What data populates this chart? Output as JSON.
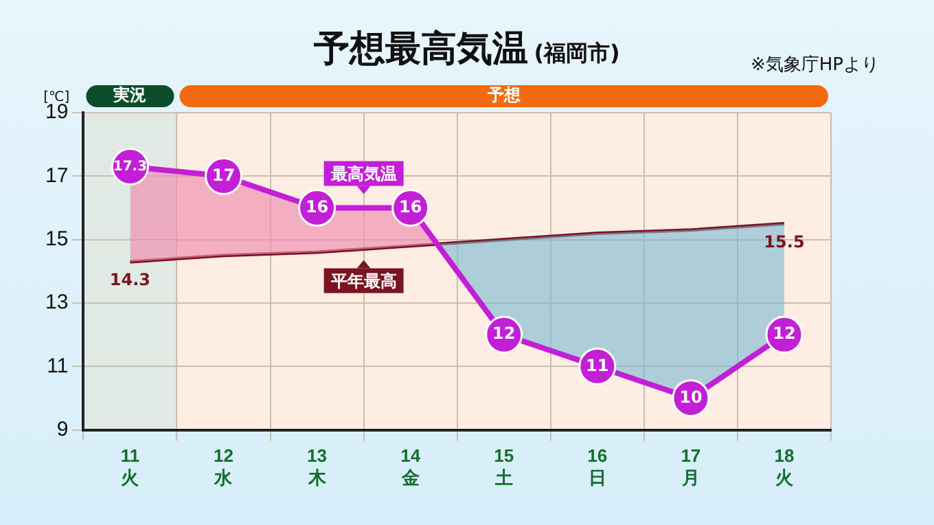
{
  "chart_data": {
    "type": "line",
    "title": "予想最高気温",
    "subtitle": "(福岡市)",
    "ylabel": "[℃]",
    "categories": [
      "11\n火",
      "12\n水",
      "13\n木",
      "14\n金",
      "15\n土",
      "16\n日",
      "17\n月",
      "18\n火"
    ],
    "series": [
      {
        "name": "最高気温",
        "color": "#c21fd6",
        "values": [
          17.3,
          17,
          16,
          16,
          12,
          11,
          10,
          12
        ],
        "value_labels": [
          "17.3",
          "17",
          "16",
          "16",
          "12",
          "11",
          "10",
          "12"
        ]
      },
      {
        "name": "平年最高",
        "color": "#7a1420",
        "values": [
          14.3,
          14.5,
          14.6,
          14.8,
          15.0,
          15.2,
          15.3,
          15.5
        ],
        "value_labels": [
          "14.3",
          null,
          null,
          null,
          null,
          null,
          null,
          "15.5"
        ],
        "marker": "none"
      }
    ],
    "ylim": [
      9,
      19
    ],
    "yticks": [
      9,
      11,
      13,
      15,
      17,
      19
    ],
    "grid": true,
    "legend": "center",
    "marker": "circle",
    "bands": [
      {
        "axis": "x",
        "from": "11\n火",
        "to": "11\n火",
        "label": "実況",
        "color": "#0b4d2a"
      },
      {
        "axis": "x",
        "from": "12\n水",
        "to": "18\n火",
        "label": "予想",
        "color": "#f26a10"
      }
    ],
    "annotations": [
      "※気象庁HPより"
    ]
  }
}
